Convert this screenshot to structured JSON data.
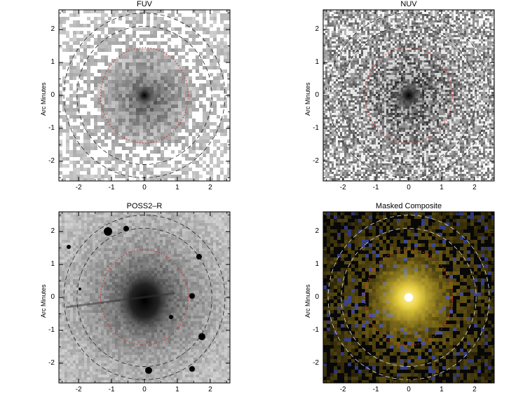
{
  "panels": [
    {
      "title": "FUV",
      "ylabel": "Arc Minutes",
      "style": "speckle-light",
      "xticks": [
        "-2",
        "-1",
        "0",
        "1",
        "2"
      ],
      "yticks": [
        "2",
        "1",
        "0",
        "-1",
        "-2"
      ]
    },
    {
      "title": "NUV",
      "ylabel": "Arc Minutes",
      "style": "speckle-dense",
      "xticks": [
        "-2",
        "-1",
        "0",
        "1",
        "2"
      ],
      "yticks": [
        "2",
        "1",
        "0",
        "-1",
        "-2"
      ]
    },
    {
      "title": "POSS2–R",
      "ylabel": "Arc Minutes",
      "style": "optical",
      "xticks": [
        "-2",
        "-1",
        "0",
        "1",
        "2"
      ],
      "yticks": [
        "2",
        "1",
        "0",
        "-1",
        "-2"
      ]
    },
    {
      "title": "Masked Composite",
      "ylabel": "Arc Minutes",
      "style": "composite",
      "xticks": [
        "-2",
        "-1",
        "0",
        "1",
        "2"
      ],
      "yticks": [
        "2",
        "1",
        "0",
        "-1",
        "-2"
      ]
    }
  ],
  "axis_range_arcmin": [
    -2.6,
    2.6
  ],
  "tick_values": [
    -2,
    -1,
    0,
    1,
    2
  ],
  "colors": {
    "inner_ellipse": "#e03030",
    "outer_ellipse_dark": "#222222",
    "outer_ellipse_light": "#dddddd",
    "composite_core": "#fff6b0"
  }
}
